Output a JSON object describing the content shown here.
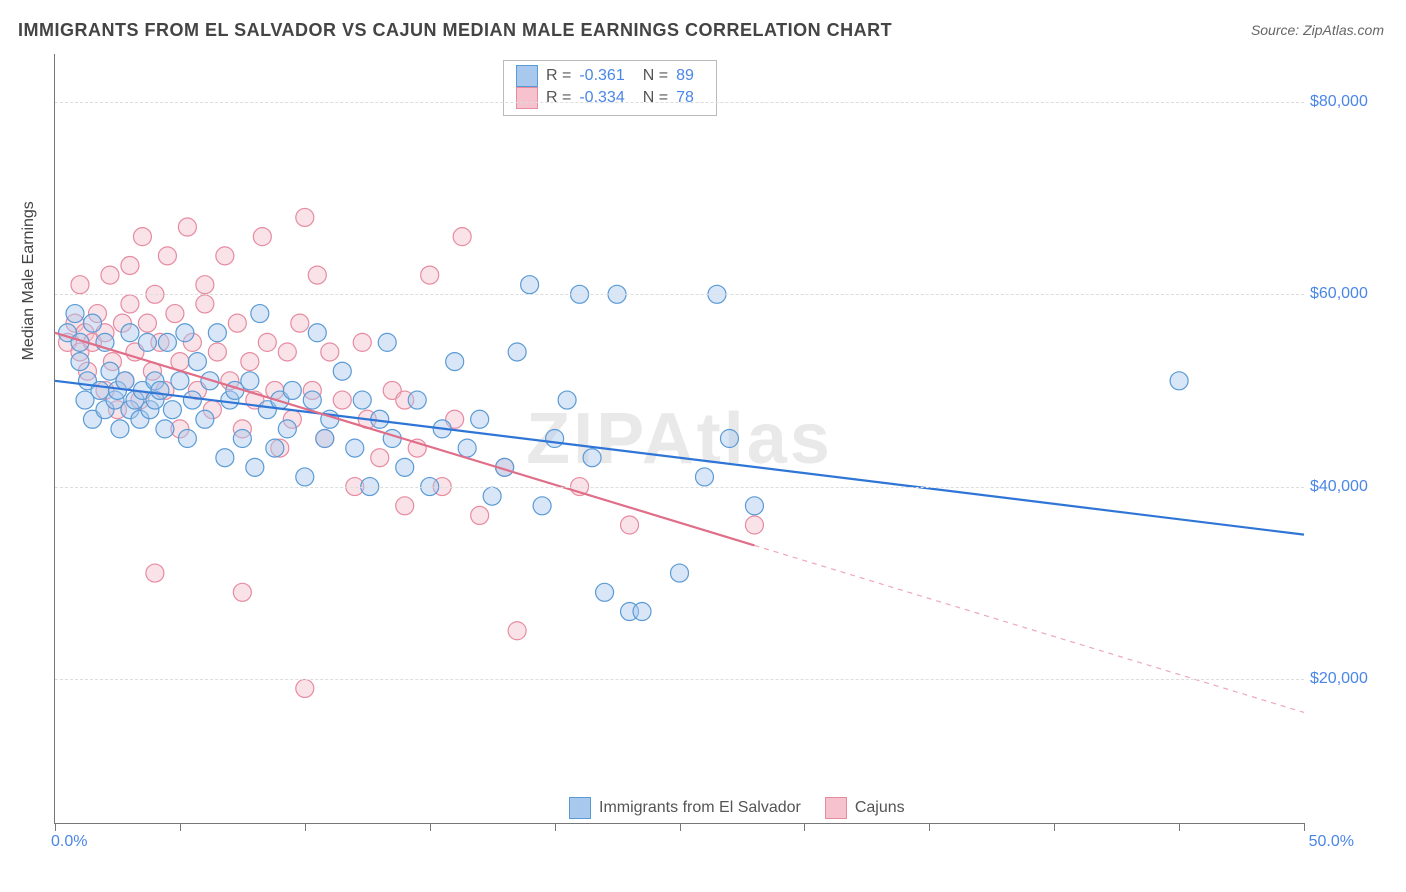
{
  "title": "IMMIGRANTS FROM EL SALVADOR VS CAJUN MEDIAN MALE EARNINGS CORRELATION CHART",
  "source_label": "Source: ",
  "source_value": "ZipAtlas.com",
  "watermark": "ZIPAtlas",
  "yaxis_label": "Median Male Earnings",
  "chart": {
    "type": "scatter",
    "background_color": "#ffffff",
    "grid_color": "#dddddd",
    "axis_color": "#777777",
    "xlim": [
      0,
      50
    ],
    "ylim": [
      5000,
      85000
    ],
    "x_ticks": [
      0,
      5,
      10,
      15,
      20,
      25,
      30,
      35,
      40,
      45,
      50
    ],
    "x_tick_labels": {
      "0": "0.0%",
      "50": "50.0%"
    },
    "y_ticks": [
      20000,
      40000,
      60000,
      80000
    ],
    "y_tick_labels": [
      "$20,000",
      "$40,000",
      "$60,000",
      "$80,000"
    ],
    "marker_radius": 9,
    "marker_opacity": 0.45,
    "marker_stroke_width": 1.2,
    "line_width": 2.2,
    "label_fontsize": 16,
    "value_color": "#4a86e8",
    "series": [
      {
        "id": "el_salvador",
        "label": "Immigrants from El Salvador",
        "color_fill": "#a8c8ed",
        "color_stroke": "#5b9bd5",
        "line_color": "#2e75d6",
        "R": "-0.361",
        "N": "89",
        "trend": {
          "x1": 0,
          "y1": 51000,
          "x2": 50,
          "y2": 35000,
          "solid_until_x": 50
        },
        "points": [
          [
            0.5,
            56000
          ],
          [
            0.8,
            58000
          ],
          [
            1.0,
            55000
          ],
          [
            1.0,
            53000
          ],
          [
            1.2,
            49000
          ],
          [
            1.3,
            51000
          ],
          [
            1.5,
            57000
          ],
          [
            1.5,
            47000
          ],
          [
            1.8,
            50000
          ],
          [
            2.0,
            55000
          ],
          [
            2.0,
            48000
          ],
          [
            2.2,
            52000
          ],
          [
            2.4,
            49000
          ],
          [
            2.5,
            50000
          ],
          [
            2.6,
            46000
          ],
          [
            2.8,
            51000
          ],
          [
            3.0,
            48000
          ],
          [
            3.0,
            56000
          ],
          [
            3.2,
            49000
          ],
          [
            3.4,
            47000
          ],
          [
            3.5,
            50000
          ],
          [
            3.7,
            55000
          ],
          [
            3.8,
            48000
          ],
          [
            4.0,
            51000
          ],
          [
            4.0,
            49000
          ],
          [
            4.2,
            50000
          ],
          [
            4.4,
            46000
          ],
          [
            4.5,
            55000
          ],
          [
            4.7,
            48000
          ],
          [
            5.0,
            51000
          ],
          [
            5.2,
            56000
          ],
          [
            5.3,
            45000
          ],
          [
            5.5,
            49000
          ],
          [
            5.7,
            53000
          ],
          [
            6.0,
            47000
          ],
          [
            6.2,
            51000
          ],
          [
            6.5,
            56000
          ],
          [
            6.8,
            43000
          ],
          [
            7.0,
            49000
          ],
          [
            7.2,
            50000
          ],
          [
            7.5,
            45000
          ],
          [
            7.8,
            51000
          ],
          [
            8.0,
            42000
          ],
          [
            8.2,
            58000
          ],
          [
            8.5,
            48000
          ],
          [
            8.8,
            44000
          ],
          [
            9.0,
            49000
          ],
          [
            9.3,
            46000
          ],
          [
            9.5,
            50000
          ],
          [
            10.0,
            41000
          ],
          [
            10.3,
            49000
          ],
          [
            10.5,
            56000
          ],
          [
            10.8,
            45000
          ],
          [
            11.0,
            47000
          ],
          [
            11.5,
            52000
          ],
          [
            12.0,
            44000
          ],
          [
            12.3,
            49000
          ],
          [
            12.6,
            40000
          ],
          [
            13.0,
            47000
          ],
          [
            13.3,
            55000
          ],
          [
            13.5,
            45000
          ],
          [
            14.0,
            42000
          ],
          [
            14.5,
            49000
          ],
          [
            15.0,
            40000
          ],
          [
            15.5,
            46000
          ],
          [
            16.0,
            53000
          ],
          [
            16.5,
            44000
          ],
          [
            17.0,
            47000
          ],
          [
            17.5,
            39000
          ],
          [
            18.0,
            42000
          ],
          [
            18.5,
            54000
          ],
          [
            19.0,
            61000
          ],
          [
            19.5,
            38000
          ],
          [
            20.0,
            45000
          ],
          [
            20.5,
            49000
          ],
          [
            21.0,
            60000
          ],
          [
            21.5,
            43000
          ],
          [
            22.0,
            29000
          ],
          [
            22.5,
            60000
          ],
          [
            23.0,
            27000
          ],
          [
            23.5,
            27000
          ],
          [
            25.0,
            31000
          ],
          [
            26.0,
            41000
          ],
          [
            26.5,
            60000
          ],
          [
            27.0,
            45000
          ],
          [
            28.0,
            38000
          ],
          [
            45.0,
            51000
          ]
        ]
      },
      {
        "id": "cajuns",
        "label": "Cajuns",
        "color_fill": "#f5c2cd",
        "color_stroke": "#e68ba0",
        "line_color": "#e06e88",
        "R": "-0.334",
        "N": "78",
        "trend": {
          "x1": 0,
          "y1": 56000,
          "x2": 50,
          "y2": 16500,
          "solid_until_x": 28
        },
        "points": [
          [
            0.5,
            55000
          ],
          [
            0.8,
            57000
          ],
          [
            1.0,
            61000
          ],
          [
            1.0,
            54000
          ],
          [
            1.2,
            56000
          ],
          [
            1.3,
            52000
          ],
          [
            1.5,
            55000
          ],
          [
            1.7,
            58000
          ],
          [
            2.0,
            50000
          ],
          [
            2.0,
            56000
          ],
          [
            2.2,
            62000
          ],
          [
            2.3,
            53000
          ],
          [
            2.5,
            48000
          ],
          [
            2.7,
            57000
          ],
          [
            2.8,
            51000
          ],
          [
            3.0,
            63000
          ],
          [
            3.0,
            59000
          ],
          [
            3.2,
            54000
          ],
          [
            3.4,
            49000
          ],
          [
            3.5,
            66000
          ],
          [
            3.7,
            57000
          ],
          [
            3.9,
            52000
          ],
          [
            4.0,
            31000
          ],
          [
            4.0,
            60000
          ],
          [
            4.2,
            55000
          ],
          [
            4.4,
            50000
          ],
          [
            4.5,
            64000
          ],
          [
            4.8,
            58000
          ],
          [
            5.0,
            53000
          ],
          [
            5.0,
            46000
          ],
          [
            5.3,
            67000
          ],
          [
            5.5,
            55000
          ],
          [
            5.7,
            50000
          ],
          [
            6.0,
            59000
          ],
          [
            6.0,
            61000
          ],
          [
            6.3,
            48000
          ],
          [
            6.5,
            54000
          ],
          [
            6.8,
            64000
          ],
          [
            7.0,
            51000
          ],
          [
            7.3,
            57000
          ],
          [
            7.5,
            29000
          ],
          [
            7.5,
            46000
          ],
          [
            7.8,
            53000
          ],
          [
            8.0,
            49000
          ],
          [
            8.3,
            66000
          ],
          [
            8.5,
            55000
          ],
          [
            8.8,
            50000
          ],
          [
            9.0,
            44000
          ],
          [
            9.3,
            54000
          ],
          [
            9.5,
            47000
          ],
          [
            9.8,
            57000
          ],
          [
            10.0,
            19000
          ],
          [
            10.0,
            68000
          ],
          [
            10.3,
            50000
          ],
          [
            10.5,
            62000
          ],
          [
            10.8,
            45000
          ],
          [
            11.0,
            54000
          ],
          [
            11.5,
            49000
          ],
          [
            12.0,
            40000
          ],
          [
            12.3,
            55000
          ],
          [
            12.5,
            47000
          ],
          [
            13.0,
            43000
          ],
          [
            13.5,
            50000
          ],
          [
            14.0,
            38000
          ],
          [
            14.0,
            49000
          ],
          [
            14.5,
            44000
          ],
          [
            15.0,
            62000
          ],
          [
            15.5,
            40000
          ],
          [
            16.0,
            47000
          ],
          [
            16.3,
            66000
          ],
          [
            17.0,
            37000
          ],
          [
            18.0,
            42000
          ],
          [
            18.5,
            25000
          ],
          [
            21.0,
            40000
          ],
          [
            23.0,
            36000
          ],
          [
            28.0,
            36000
          ]
        ]
      }
    ],
    "bottom_legend": [
      {
        "swatch_fill": "#a8c8ed",
        "swatch_stroke": "#5b9bd5",
        "label": "Immigrants from El Salvador"
      },
      {
        "swatch_fill": "#f5c2cd",
        "swatch_stroke": "#e68ba0",
        "label": "Cajuns"
      }
    ]
  }
}
